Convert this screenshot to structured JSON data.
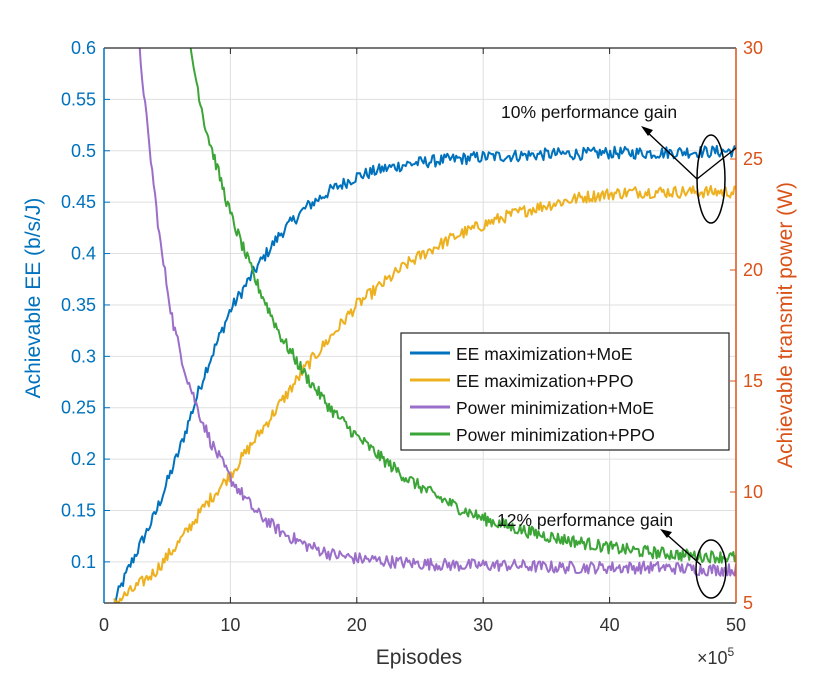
{
  "chart_data": {
    "type": "line",
    "xlabel": "Episodes",
    "x_multiplier_label": "×10",
    "x_multiplier_exp": "5",
    "ylabel_left": "Achievable EE (b/s/J)",
    "ylabel_right": "Achievable transmit power (W)",
    "xlim": [
      0,
      50
    ],
    "ylim_left": [
      0.06,
      0.6
    ],
    "ylim_right": [
      5,
      30
    ],
    "x_ticks": [
      "0",
      "10",
      "20",
      "30",
      "40",
      "50"
    ],
    "left_ticks": [
      "0.1",
      "0.15",
      "0.2",
      "0.25",
      "0.3",
      "0.35",
      "0.4",
      "0.45",
      "0.5",
      "0.55",
      "0.6"
    ],
    "right_ticks": [
      "5",
      "10",
      "15",
      "20",
      "25",
      "30"
    ],
    "grid": true,
    "legend_position": "center-right",
    "colors": {
      "left_axis": "#0072BD",
      "right_axis": "#D95319",
      "grid": "#dfdfdf"
    },
    "series": [
      {
        "name": "EE maximization+MoE",
        "axis": "left",
        "color": "#0072BD",
        "x": [
          0.8,
          2,
          4,
          6,
          8,
          10,
          12,
          14,
          16,
          18,
          20,
          22,
          24,
          26,
          28,
          30,
          32,
          34,
          36,
          38,
          40,
          42,
          44,
          46,
          48,
          50
        ],
        "y": [
          0.06,
          0.095,
          0.145,
          0.21,
          0.285,
          0.345,
          0.385,
          0.42,
          0.445,
          0.462,
          0.475,
          0.482,
          0.487,
          0.49,
          0.492,
          0.494,
          0.495,
          0.496,
          0.497,
          0.497,
          0.498,
          0.498,
          0.498,
          0.499,
          0.499,
          0.5
        ]
      },
      {
        "name": "EE maximization+PPO",
        "axis": "left",
        "color": "#EDB120",
        "x": [
          0.8,
          2,
          4,
          6,
          8,
          10,
          12,
          14,
          16,
          18,
          20,
          22,
          24,
          26,
          28,
          30,
          32,
          34,
          36,
          38,
          40,
          42,
          44,
          46,
          48,
          50
        ],
        "y": [
          0.06,
          0.07,
          0.09,
          0.12,
          0.155,
          0.185,
          0.22,
          0.255,
          0.29,
          0.32,
          0.35,
          0.37,
          0.39,
          0.405,
          0.418,
          0.428,
          0.437,
          0.444,
          0.45,
          0.455,
          0.458,
          0.46,
          0.46,
          0.46,
          0.46,
          0.46
        ]
      },
      {
        "name": "Power minimization+MoE",
        "axis": "right",
        "color": "#9B6FC9",
        "x": [
          2.8,
          3.5,
          4.5,
          5.5,
          6.5,
          7.5,
          8.5,
          10,
          12,
          14,
          16,
          18,
          20,
          24,
          28,
          32,
          36,
          40,
          44,
          48,
          50
        ],
        "y": [
          30,
          26,
          21,
          17.5,
          15.3,
          13.6,
          12.2,
          10.6,
          9.1,
          8.2,
          7.6,
          7.2,
          7.0,
          6.8,
          6.7,
          6.7,
          6.6,
          6.6,
          6.6,
          6.5,
          6.5
        ]
      },
      {
        "name": "Power minimization+PPO",
        "axis": "right",
        "color": "#3CA537",
        "x": [
          6.8,
          8,
          10,
          12,
          14,
          16,
          18,
          20,
          22,
          24,
          26,
          28,
          30,
          32,
          34,
          36,
          38,
          40,
          42,
          44,
          46,
          48,
          50
        ],
        "y": [
          30,
          26.5,
          22.5,
          19.5,
          17.0,
          15.2,
          13.7,
          12.5,
          11.5,
          10.6,
          9.9,
          9.3,
          8.8,
          8.45,
          8.15,
          7.9,
          7.7,
          7.5,
          7.35,
          7.25,
          7.15,
          7.1,
          7.05
        ]
      }
    ],
    "annotations": [
      {
        "text": "10% performance gain",
        "x": 40.8,
        "y": 0.547,
        "axis": "left"
      },
      {
        "text": "12% performance gain",
        "x": 40.8,
        "y": 8.4,
        "axis": "right"
      }
    ]
  }
}
